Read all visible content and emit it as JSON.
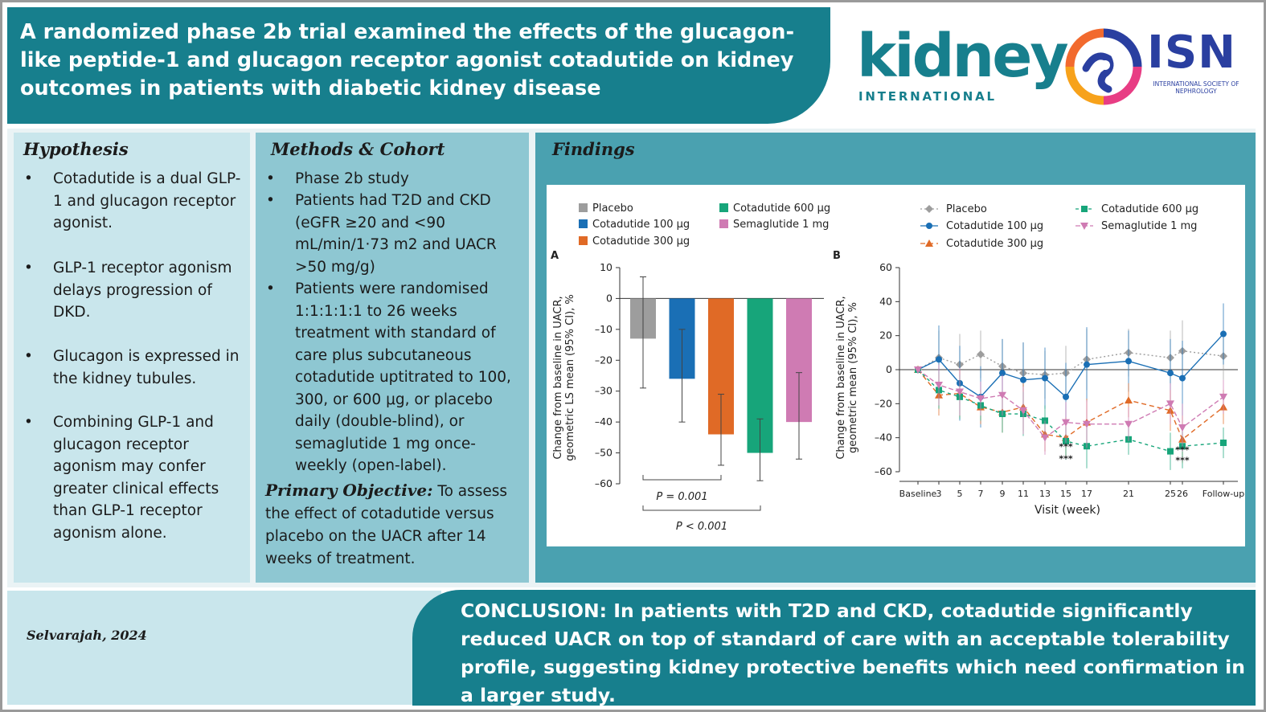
{
  "header": {
    "title": "A randomized phase 2b trial examined the effects of the glucagon-like peptide-1 and glucagon receptor agonist cotadutide on kidney outcomes in patients with diabetic kidney disease"
  },
  "logos": {
    "kidney": "kidney",
    "international": "INTERNATIONAL",
    "isn": "ISN",
    "isn_full": "INTERNATIONAL SOCIETY OF NEPHROLOGY"
  },
  "hypothesis": {
    "title": "Hypothesis",
    "bullets": [
      "Cotadutide is a dual GLP-1 and glucagon receptor agonist.",
      "GLP-1 receptor agonism delays progression of DKD.",
      "Glucagon is expressed in the kidney tubules.",
      "Combining GLP-1 and glucagon receptor agonism may confer greater clinical effects than GLP-1 receptor agonism alone."
    ]
  },
  "methods": {
    "title": "Methods & Cohort",
    "bullets": [
      "Phase 2b study",
      "Patients had T2D and CKD (eGFR ≥20 and <90 mL/min/1·73 m2 and UACR >50 mg/g)",
      "Patients were randomised 1:1:1:1:1 to 26 weeks treatment with standard of care plus subcutaneous cotadutide uptitrated to 100, 300, or 600 μg, or placebo daily (double-blind), or semaglutide 1 mg once-weekly (open-label)."
    ],
    "primary_label": "Primary Objective:",
    "primary_text": "To assess the effect of cotadutide versus placebo on the UACR after 14 weeks of treatment."
  },
  "findings": {
    "title": "Findings"
  },
  "chart_data": [
    {
      "type": "bar",
      "panel": "A",
      "ylabel": "Change from baseline in UACR, geometric LS mean (95% CI), %",
      "ylim": [
        -60,
        10
      ],
      "yticks": [
        10,
        0,
        -10,
        -20,
        -30,
        -40,
        -50,
        -60
      ],
      "ytick_labels": [
        "10",
        "0",
        "–10",
        "–20",
        "–30",
        "–40",
        "–50",
        "–60"
      ],
      "categories": [
        "Placebo",
        "Cotadutide 100 μg",
        "Cotadutide 300 μg",
        "Cotadutide 600 μg",
        "Semaglutide 1 mg"
      ],
      "values": [
        -13,
        -26,
        -44,
        -50,
        -40
      ],
      "ci_low": [
        -29,
        -40,
        -54,
        -59,
        -52
      ],
      "ci_high": [
        7,
        -10,
        -31,
        -39,
        -24
      ],
      "colors": [
        "#9d9d9d",
        "#1a6fb5",
        "#e06a26",
        "#17a57a",
        "#cf7bb3"
      ],
      "legend": [
        "Placebo",
        "Cotadutide 100 μg",
        "Cotadutide 300 μg",
        "Cotadutide 600 μg",
        "Semaglutide 1 mg"
      ],
      "annotations": [
        "P = 0.001",
        "P < 0.001"
      ]
    },
    {
      "type": "line",
      "panel": "B",
      "ylabel": "Change from baseline in UACR, geometric mean (95% CI), %",
      "xlabel": "Visit (week)",
      "ylim": [
        -60,
        60
      ],
      "yticks": [
        60,
        40,
        20,
        0,
        -20,
        -40,
        -60
      ],
      "ytick_labels": [
        "60",
        "40",
        "20",
        "0",
        "–20",
        "–40",
        "–60"
      ],
      "x_labels": [
        "Baseline",
        "3",
        "5",
        "7",
        "9",
        "11",
        "13",
        "15",
        "17",
        "21",
        "25",
        "26",
        "Follow-up"
      ],
      "legend": [
        "Placebo",
        "Cotadutide 100 μg",
        "Cotadutide 300 μg",
        "Cotadutide 600 μg",
        "Semaglutide 1 mg"
      ],
      "colors": [
        "#9d9d9d",
        "#1a6fb5",
        "#e06a26",
        "#17a57a",
        "#cf7bb3"
      ],
      "x": [
        0,
        3,
        5,
        7,
        9,
        11,
        13,
        15,
        17,
        21,
        25,
        26,
        29
      ],
      "series": [
        {
          "name": "Placebo",
          "values": [
            0,
            7,
            3,
            9,
            2,
            -2,
            -3,
            -2,
            6,
            10,
            7,
            11,
            8
          ]
        },
        {
          "name": "Cotadutide 100 μg",
          "values": [
            0,
            6,
            -8,
            -16,
            -2,
            -6,
            -5,
            -16,
            3,
            5,
            -2,
            -5,
            21
          ]
        },
        {
          "name": "Cotadutide 300 μg",
          "values": [
            0,
            -15,
            -14,
            -22,
            -25,
            -22,
            -38,
            -40,
            -31,
            -18,
            -24,
            -41,
            -22
          ]
        },
        {
          "name": "Cotadutide 600 μg",
          "values": [
            0,
            -12,
            -16,
            -21,
            -26,
            -26,
            -30,
            -42,
            -45,
            -41,
            -48,
            -45,
            -43
          ]
        },
        {
          "name": "Semaglutide 1 mg",
          "values": [
            0,
            -9,
            -13,
            -17,
            -15,
            -24,
            -40,
            -31,
            -32,
            -32,
            -20,
            -34,
            -16
          ]
        }
      ]
    }
  ],
  "footer": {
    "author": "Selvarajah, 2024",
    "conclusion": "CONCLUSION: In patients with T2D and CKD, cotadutide significantly reduced UACR on top of standard of care with an acceptable tolerability profile, suggesting kidney protective benefits which need confirmation in a larger study."
  }
}
